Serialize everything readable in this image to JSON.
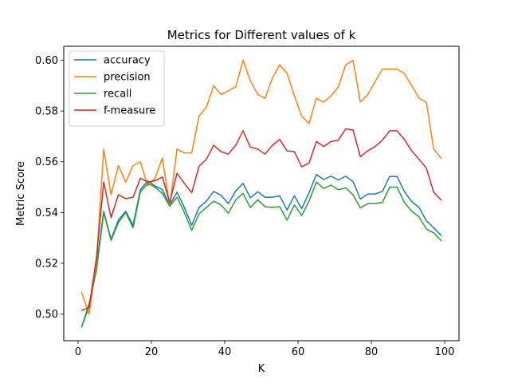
{
  "chart_data": {
    "type": "line",
    "title": "Metrics for Different values of k",
    "xlabel": "K",
    "ylabel": "Metric Score",
    "xlim": [
      -3.9,
      103.9
    ],
    "ylim": [
      0.4895,
      0.6055
    ],
    "xticks": [
      0,
      20,
      40,
      60,
      80,
      100
    ],
    "xtick_labels": [
      "0",
      "20",
      "40",
      "60",
      "80",
      "100"
    ],
    "yticks": [
      0.5,
      0.52,
      0.54,
      0.56,
      0.58,
      0.6
    ],
    "ytick_labels": [
      "0.50",
      "0.52",
      "0.54",
      "0.56",
      "0.58",
      "0.60"
    ],
    "grid": false,
    "legend_position": "top-left",
    "x": [
      1,
      3,
      5,
      7,
      9,
      11,
      13,
      15,
      17,
      19,
      21,
      23,
      25,
      27,
      29,
      31,
      33,
      35,
      37,
      39,
      41,
      43,
      45,
      47,
      49,
      51,
      53,
      55,
      57,
      59,
      61,
      63,
      65,
      67,
      69,
      71,
      73,
      75,
      77,
      79,
      81,
      83,
      85,
      87,
      89,
      91,
      93,
      95,
      97,
      99
    ],
    "series": [
      {
        "name": "accuracy",
        "color": "#1f77b4",
        "values": [
          0.495,
          0.503,
          0.519,
          0.5405,
          0.5295,
          0.537,
          0.5405,
          0.535,
          0.549,
          0.5525,
          0.5505,
          0.549,
          0.543,
          0.548,
          0.542,
          0.535,
          0.542,
          0.5445,
          0.5483,
          0.5468,
          0.5435,
          0.5485,
          0.5515,
          0.5458,
          0.5482,
          0.546,
          0.546,
          0.5466,
          0.541,
          0.5466,
          0.5415,
          0.5478,
          0.555,
          0.553,
          0.5543,
          0.5528,
          0.5543,
          0.5522,
          0.5453,
          0.5473,
          0.5473,
          0.5483,
          0.5542,
          0.5542,
          0.5483,
          0.5443,
          0.542,
          0.5368,
          0.534,
          0.531
        ]
      },
      {
        "name": "precision",
        "color": "#ff7f0e",
        "values": [
          0.5085,
          0.5,
          0.52,
          0.565,
          0.547,
          0.5585,
          0.552,
          0.5585,
          0.56,
          0.5505,
          0.5535,
          0.5615,
          0.5425,
          0.565,
          0.5635,
          0.5635,
          0.578,
          0.5815,
          0.59,
          0.5865,
          0.588,
          0.5895,
          0.6,
          0.592,
          0.5865,
          0.585,
          0.593,
          0.5982,
          0.5948,
          0.586,
          0.578,
          0.575,
          0.585,
          0.5835,
          0.586,
          0.5895,
          0.5982,
          0.6,
          0.5835,
          0.5865,
          0.5915,
          0.5965,
          0.5965,
          0.5965,
          0.5948,
          0.59,
          0.585,
          0.5835,
          0.565,
          0.5615
        ]
      },
      {
        "name": "recall",
        "color": "#2ca02c",
        "values": [
          0.495,
          0.504,
          0.517,
          0.54,
          0.529,
          0.536,
          0.54,
          0.534,
          0.548,
          0.5515,
          0.55,
          0.5475,
          0.5425,
          0.546,
          0.54,
          0.533,
          0.5395,
          0.542,
          0.5445,
          0.543,
          0.5397,
          0.545,
          0.5475,
          0.542,
          0.545,
          0.5423,
          0.542,
          0.5423,
          0.537,
          0.543,
          0.5388,
          0.5445,
          0.552,
          0.5495,
          0.5508,
          0.549,
          0.5497,
          0.547,
          0.5418,
          0.5435,
          0.5435,
          0.544,
          0.55,
          0.55,
          0.544,
          0.5405,
          0.5383,
          0.5335,
          0.532,
          0.529
        ]
      },
      {
        "name": "f-measure",
        "color": "#d62728",
        "values": [
          0.5015,
          0.5025,
          0.522,
          0.552,
          0.538,
          0.547,
          0.5455,
          0.546,
          0.5535,
          0.552,
          0.5525,
          0.554,
          0.544,
          0.5555,
          0.5515,
          0.5478,
          0.5582,
          0.561,
          0.5665,
          0.564,
          0.563,
          0.5665,
          0.5722,
          0.5658,
          0.565,
          0.563,
          0.5665,
          0.5688,
          0.5643,
          0.564,
          0.558,
          0.5595,
          0.568,
          0.566,
          0.568,
          0.5685,
          0.573,
          0.5725,
          0.562,
          0.5643,
          0.566,
          0.5685,
          0.5722,
          0.5722,
          0.5688,
          0.5643,
          0.561,
          0.5575,
          0.548,
          0.545
        ]
      }
    ]
  }
}
